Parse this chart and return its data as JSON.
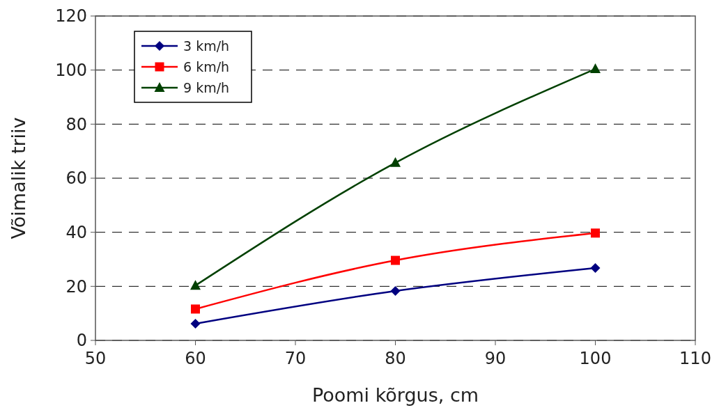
{
  "chart_data": {
    "type": "line",
    "xlabel": "Poomi kõrgus, cm",
    "ylabel": "Võimalik triiv",
    "x": [
      60,
      80,
      100
    ],
    "series": [
      {
        "name": "3 km/h",
        "color": "#000080",
        "marker": "diamond",
        "values": [
          6.2,
          18.3,
          26.8
        ]
      },
      {
        "name": "6 km/h",
        "color": "#ff0000",
        "marker": "square",
        "values": [
          11.6,
          29.6,
          39.7
        ]
      },
      {
        "name": "9 km/h",
        "color": "#004000",
        "marker": "triangle",
        "values": [
          20.3,
          65.7,
          100.4
        ]
      }
    ],
    "xlim": [
      50,
      110
    ],
    "xticks": [
      50,
      60,
      70,
      80,
      90,
      100,
      110
    ],
    "ylim": [
      0,
      120
    ],
    "yticks": [
      0,
      20,
      40,
      60,
      80,
      100,
      120
    ],
    "grid": "y",
    "legend": "top left"
  }
}
